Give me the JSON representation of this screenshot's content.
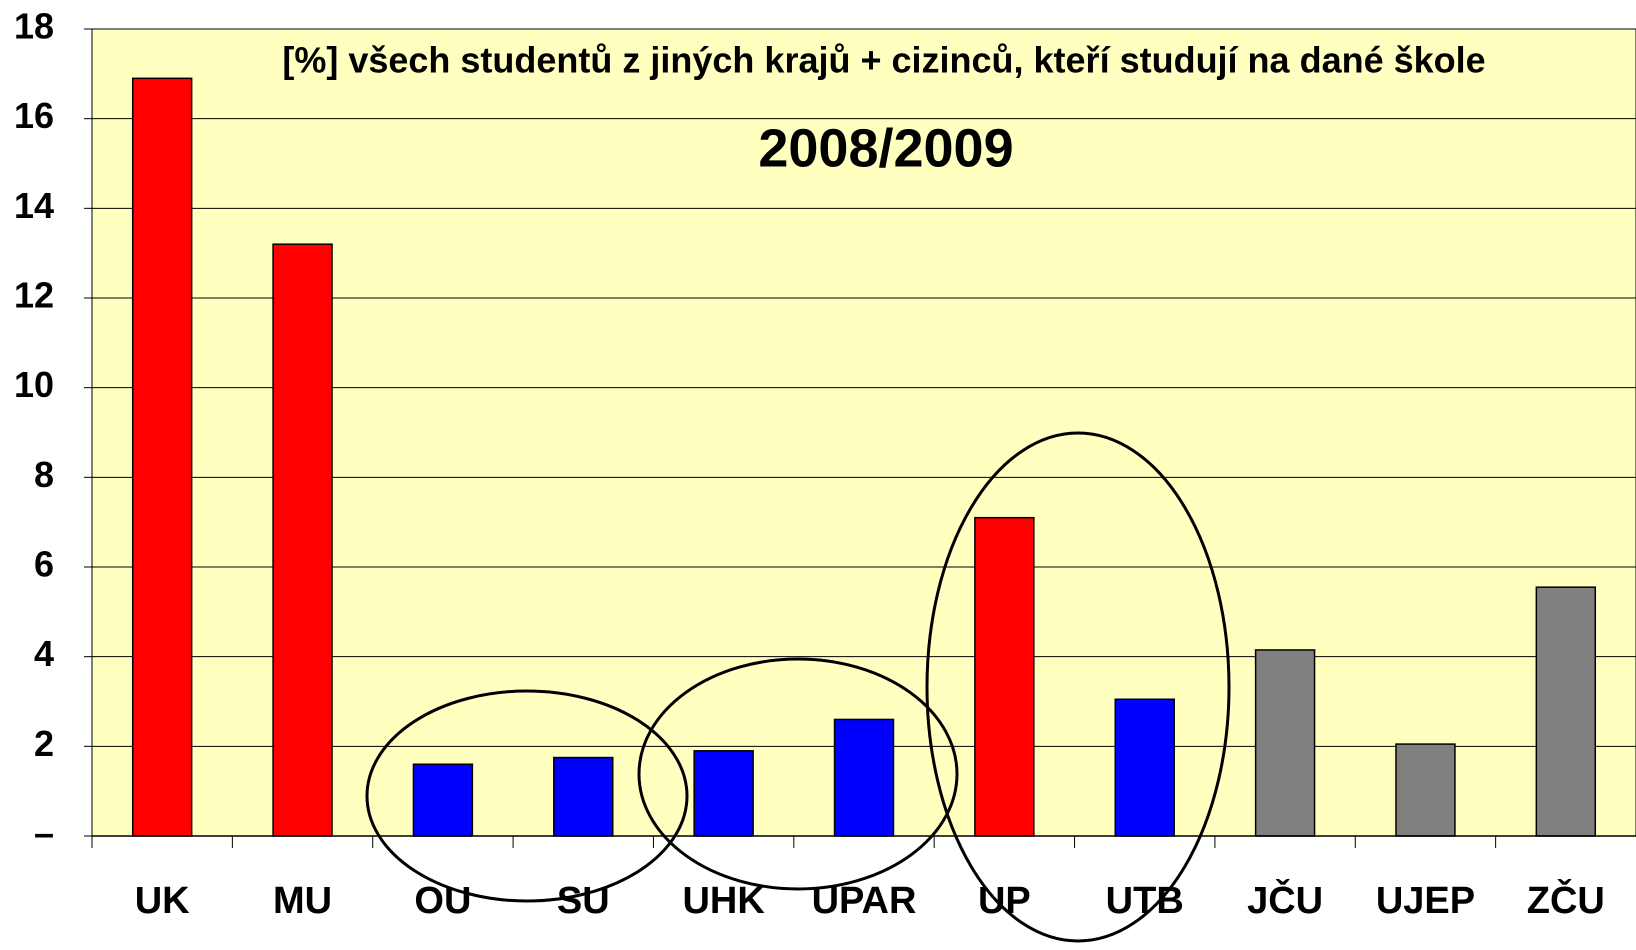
{
  "chart_data": {
    "type": "bar",
    "title": "[%] všech studentů z jiných krajů + cizinců, kteří studují na dané škole",
    "subtitle": "2008/2009",
    "categories": [
      "UK",
      "MU",
      "OU",
      "SU",
      "UHK",
      "UPAR",
      "UP",
      "UTB",
      "JČU",
      "UJEP",
      "ZČU"
    ],
    "values": [
      16.9,
      13.2,
      1.6,
      1.75,
      1.9,
      2.6,
      7.1,
      3.05,
      4.15,
      2.05,
      5.55
    ],
    "colors": [
      "#ff0000",
      "#ff0000",
      "#0000ff",
      "#0000ff",
      "#0000ff",
      "#0000ff",
      "#ff0000",
      "#0000ff",
      "#808080",
      "#808080",
      "#808080"
    ],
    "ylim": [
      0,
      18
    ],
    "yticks": [
      {
        "value": 0,
        "label": "–"
      },
      2,
      4,
      6,
      8,
      10,
      12,
      14,
      16,
      18
    ],
    "grid": true
  }
}
